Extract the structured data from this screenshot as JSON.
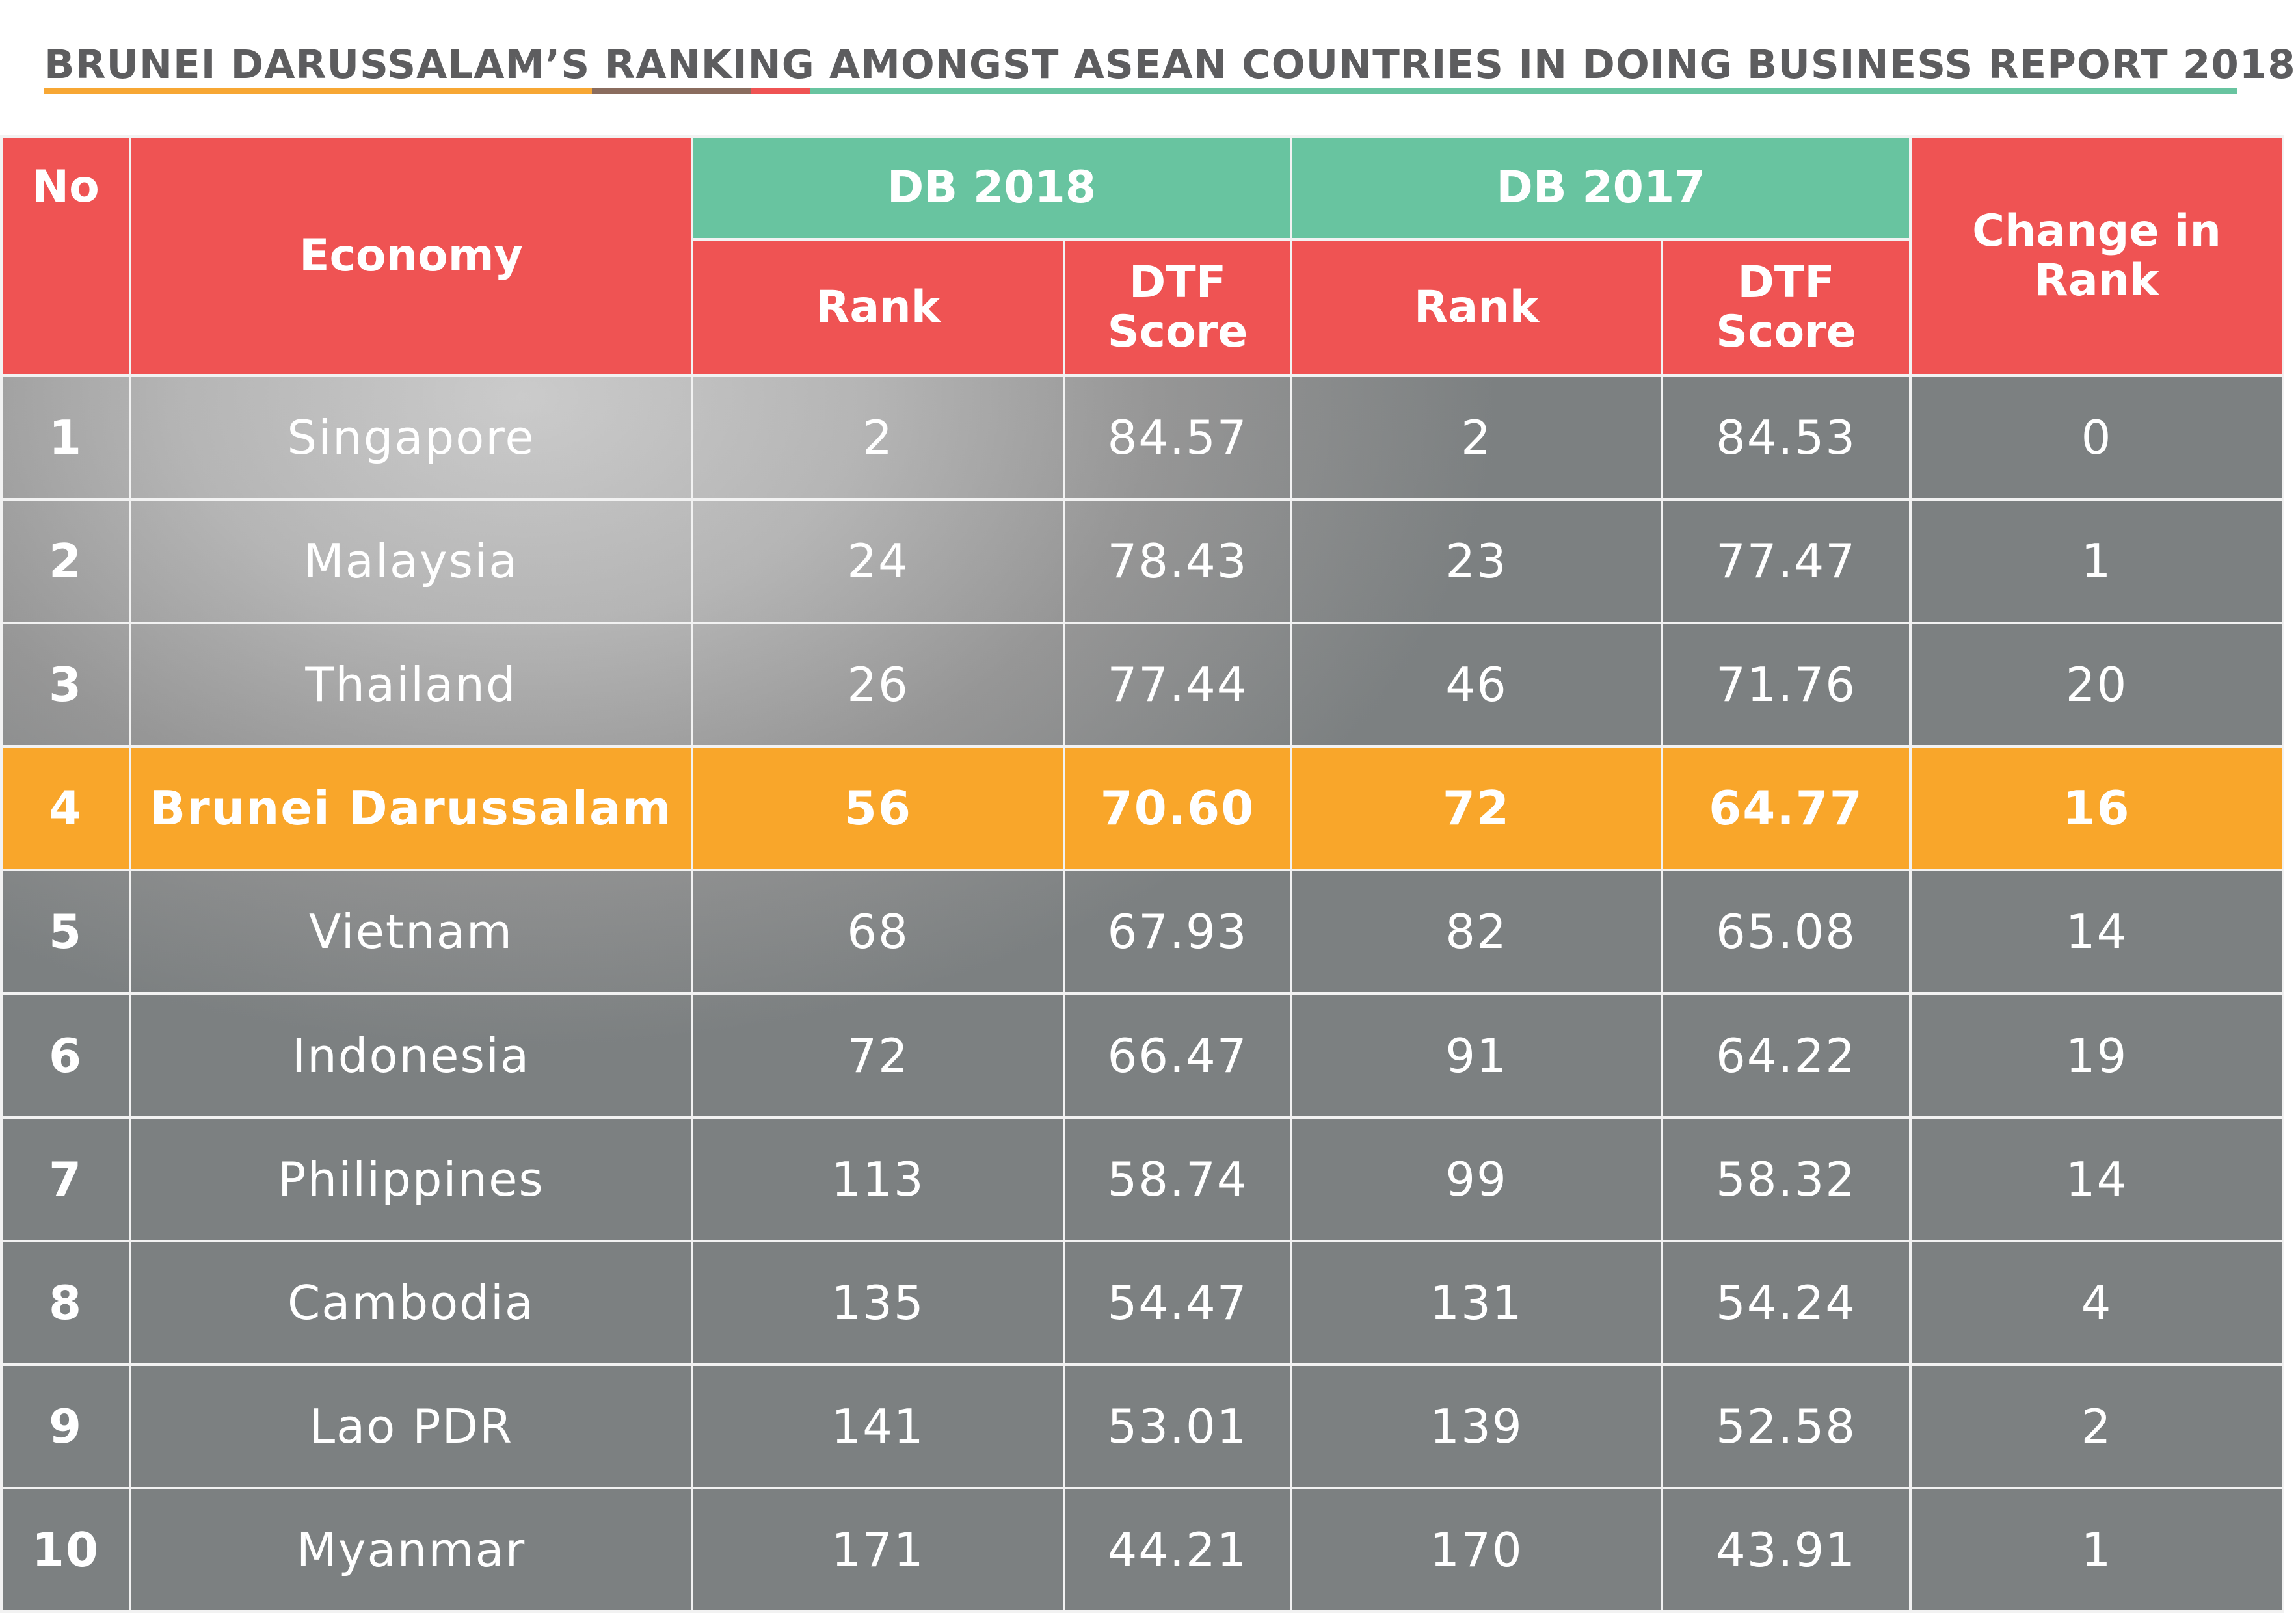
{
  "title": "BRUNEI DARUSSALAM’S RANKING AMONGST ASEAN COUNTRIES IN DOING BUSINESS REPORT 2018",
  "colors": {
    "header_red": "#ef5353",
    "header_green": "#68c4a0",
    "highlight_orange": "#f9a62a",
    "title_grey": "#5d5d5f",
    "underline": [
      "#f7a734",
      "#8a6c5e",
      "#ef5353",
      "#68c4a0"
    ]
  },
  "headers": {
    "no": "No",
    "economy": "Economy",
    "db2018": "DB 2018",
    "db2017": "DB 2017",
    "rank": "Rank",
    "dtf_line1": "DTF",
    "dtf_line2": "Score",
    "change_line1": "Change in",
    "change_line2": "Rank"
  },
  "chart_data": {
    "type": "table",
    "title": "BRUNEI DARUSSALAM’S RANKING AMONGST ASEAN COUNTRIES IN DOING BUSINESS REPORT 2018",
    "columns": [
      "No",
      "Economy",
      "DB 2018 Rank",
      "DB 2018 DTF Score",
      "DB 2017 Rank",
      "DB 2017 DTF Score",
      "Change in Rank"
    ],
    "highlight_row": 3,
    "rows": [
      [
        "1",
        "Singapore",
        "2",
        "84.57",
        "2",
        "84.53",
        "0"
      ],
      [
        "2",
        "Malaysia",
        "24",
        "78.43",
        "23",
        "77.47",
        "1"
      ],
      [
        "3",
        "Thailand",
        "26",
        "77.44",
        "46",
        "71.76",
        "20"
      ],
      [
        "4",
        "Brunei Darussalam",
        "56",
        "70.60",
        "72",
        "64.77",
        "16"
      ],
      [
        "5",
        "Vietnam",
        "68",
        "67.93",
        "82",
        "65.08",
        "14"
      ],
      [
        "6",
        "Indonesia",
        "72",
        "66.47",
        "91",
        "64.22",
        "19"
      ],
      [
        "7",
        "Philippines",
        "113",
        "58.74",
        "99",
        "58.32",
        "14"
      ],
      [
        "8",
        "Cambodia",
        "135",
        "54.47",
        "131",
        "54.24",
        "4"
      ],
      [
        "9",
        "Lao PDR",
        "141",
        "53.01",
        "139",
        "52.58",
        "2"
      ],
      [
        "10",
        "Myanmar",
        "171",
        "44.21",
        "170",
        "43.91",
        "1"
      ]
    ]
  }
}
